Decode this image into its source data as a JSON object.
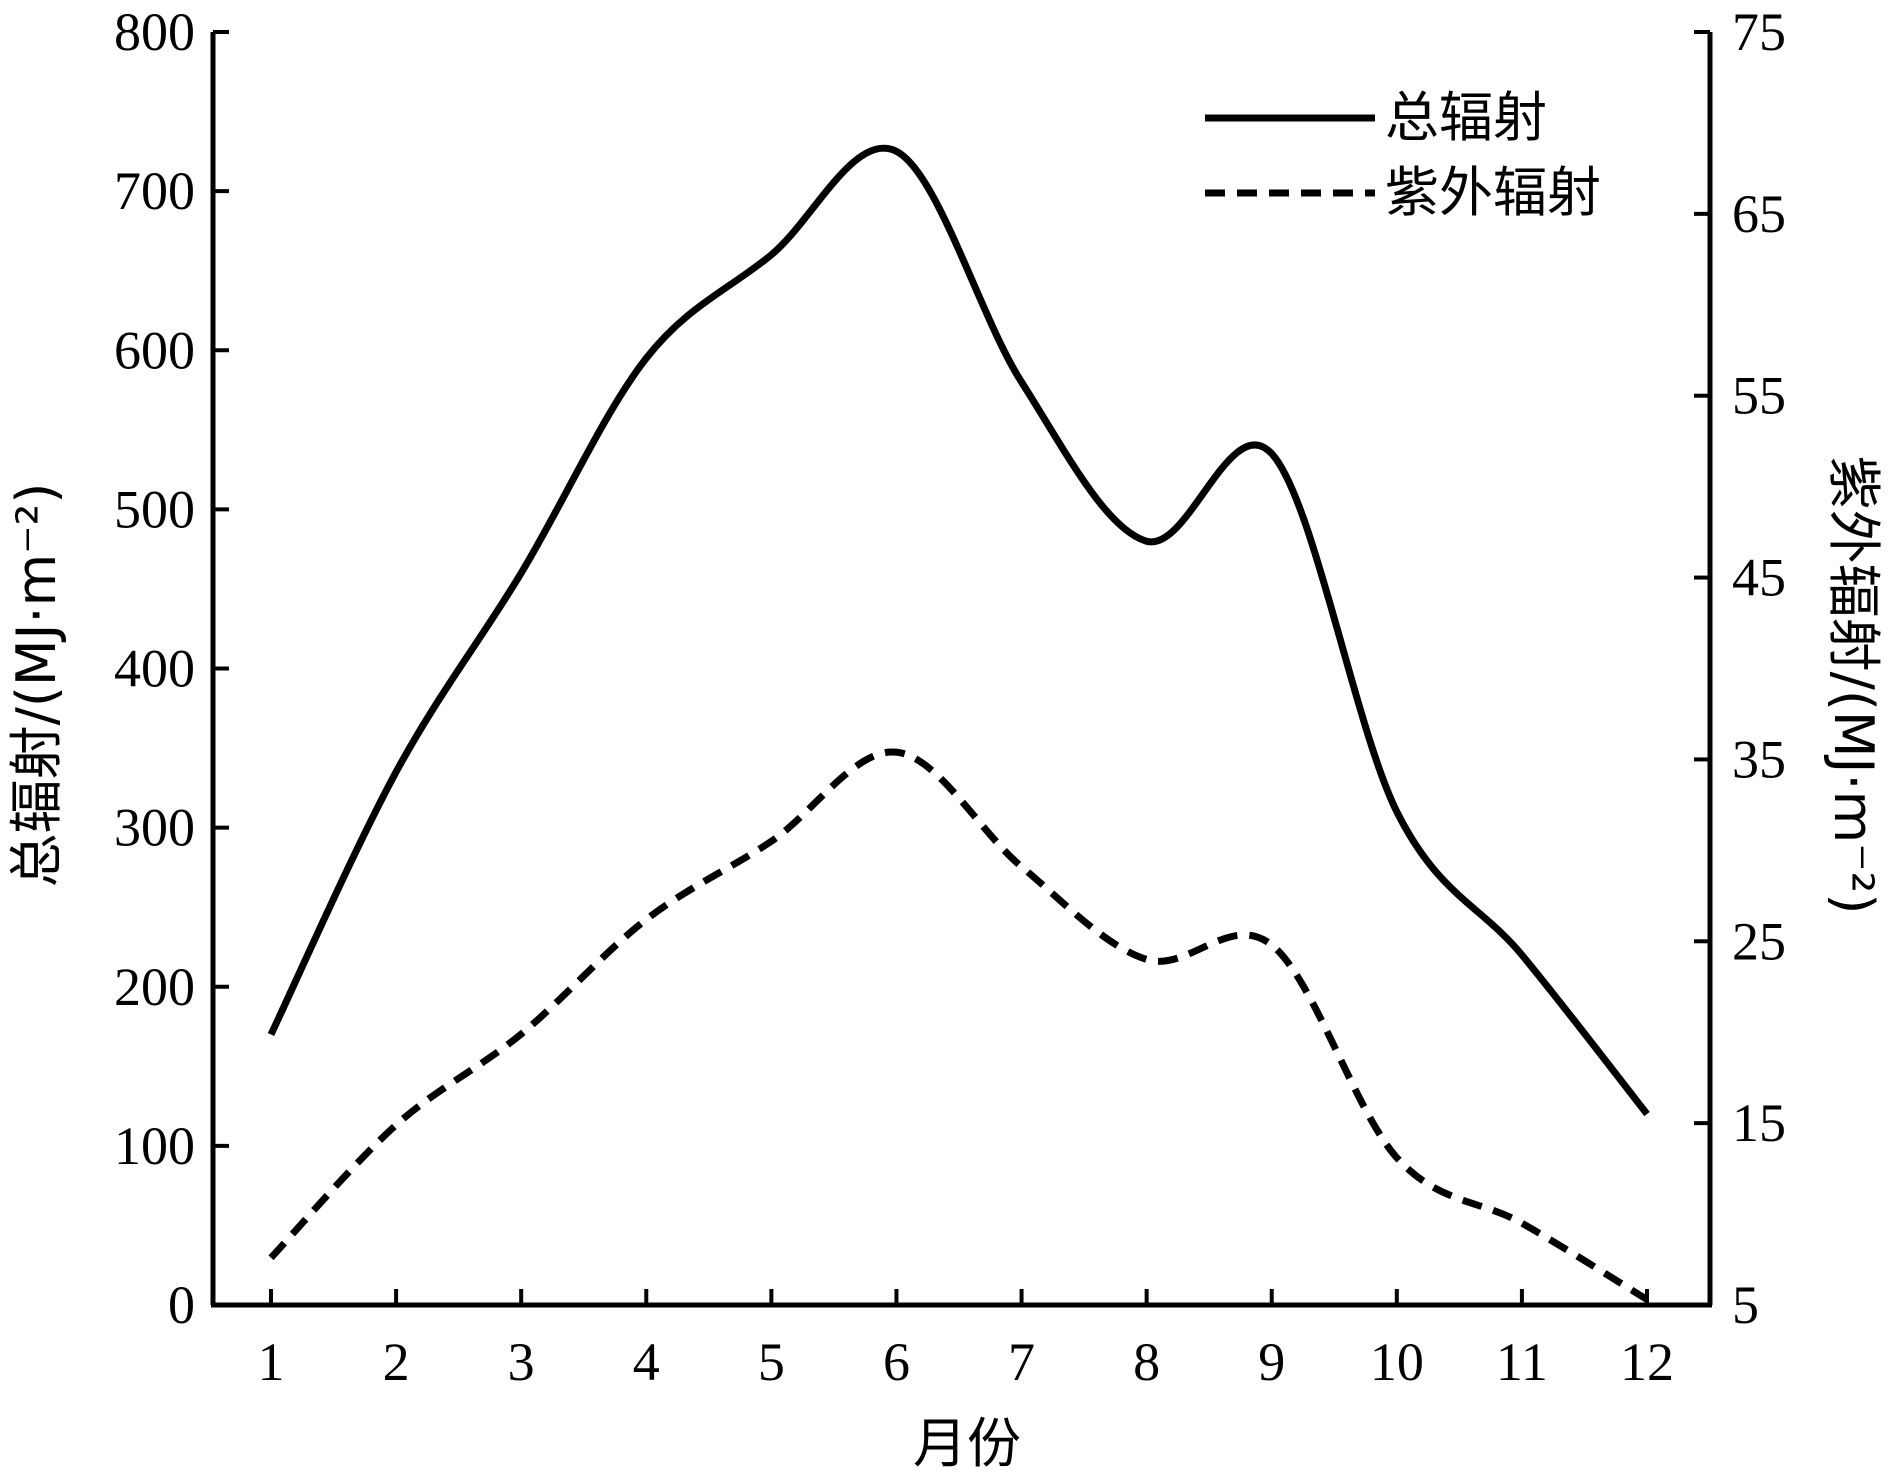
{
  "chart_data": {
    "type": "line",
    "x": [
      "1",
      "2",
      "3",
      "4",
      "5",
      "6",
      "7",
      "8",
      "9",
      "10",
      "11",
      "12"
    ],
    "xlabel": "月份",
    "ylabel_left": "总辐射/(MJ·m⁻²)",
    "ylabel_right": "紫外辐射/(MJ·m⁻²)",
    "ylim_left": [
      0,
      800
    ],
    "ylim_right": [
      5,
      75
    ],
    "yticks_left": [
      "0",
      "100",
      "200",
      "300",
      "400",
      "500",
      "600",
      "700",
      "800"
    ],
    "yticks_right": [
      "5",
      "15",
      "25",
      "35",
      "45",
      "55",
      "65",
      "75"
    ],
    "grid": false,
    "legend_position": "top-right",
    "series": [
      {
        "name": "总辐射",
        "axis": "left",
        "style": "solid",
        "values": [
          170,
          335,
          460,
          595,
          660,
          725,
          580,
          480,
          535,
          310,
          220,
          120
        ]
      },
      {
        "name": "紫外辐射",
        "axis": "right",
        "style": "dashed",
        "values": [
          7.6,
          14.9,
          19.9,
          26.2,
          30.5,
          35.4,
          29.1,
          24.0,
          24.8,
          13.1,
          9.5,
          5.3
        ]
      }
    ]
  }
}
